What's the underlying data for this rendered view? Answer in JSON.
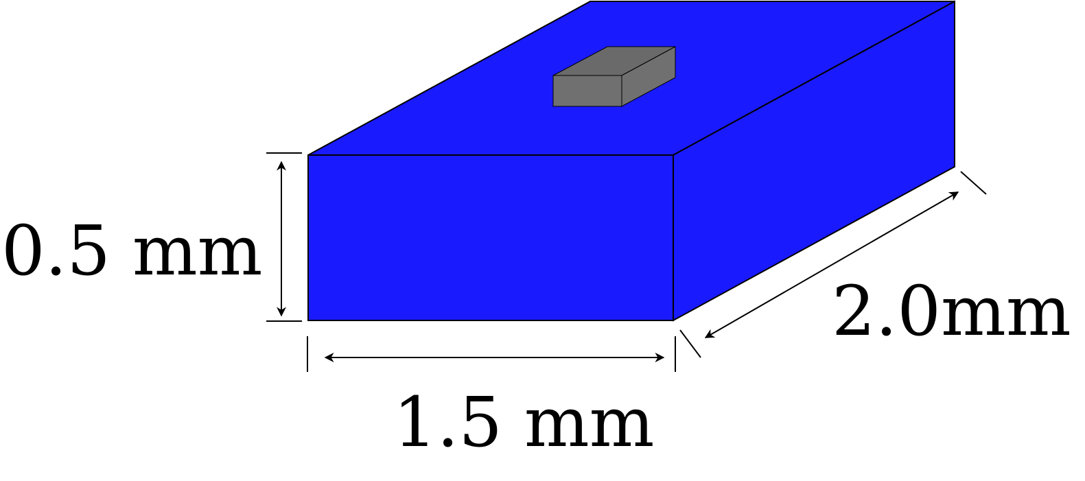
{
  "labels": {
    "height": "0.5 mm",
    "width": "1.5 mm",
    "depth": "2.0mm"
  },
  "colors": {
    "block": "#1a1aff",
    "chip": "#707070",
    "chip_top": "#6a6a6a",
    "outline": "#000000"
  }
}
